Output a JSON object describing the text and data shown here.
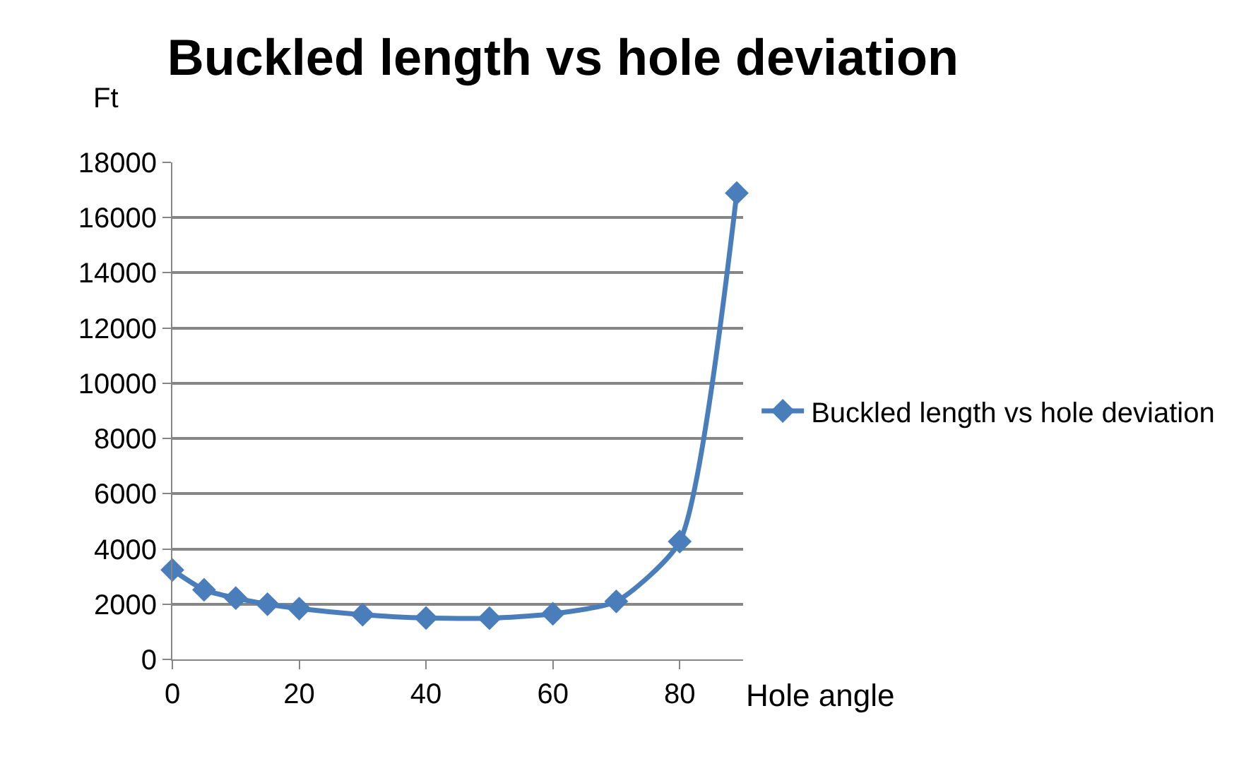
{
  "chart_data": {
    "type": "line",
    "title": "Buckled length vs hole deviation",
    "xlabel": "Hole angle",
    "ylabel": "Ft",
    "x": [
      0,
      5,
      10,
      15,
      20,
      30,
      40,
      50,
      60,
      70,
      80,
      89
    ],
    "series": [
      {
        "name": "Buckled length vs hole deviation",
        "color": "#4a7ebb",
        "values": [
          3240,
          2520,
          2220,
          2000,
          1840,
          1620,
          1500,
          1490,
          1650,
          2100,
          4270,
          16890
        ]
      }
    ],
    "xlim": [
      0,
      90
    ],
    "xticks": [
      0,
      20,
      40,
      60,
      80
    ],
    "ylim": [
      0,
      18000
    ],
    "yticks": [
      0,
      2000,
      4000,
      6000,
      8000,
      10000,
      12000,
      14000,
      16000,
      18000
    ],
    "grid": "y",
    "legend": "right",
    "marker": "diamond",
    "line_style": "solid"
  }
}
